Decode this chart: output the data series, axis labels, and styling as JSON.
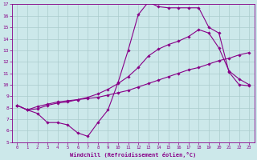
{
  "title": "",
  "xlabel": "Windchill (Refroidissement éolien,°C)",
  "ylabel": "",
  "xlim": [
    -0.5,
    23.5
  ],
  "ylim": [
    5,
    17
  ],
  "yticks": [
    5,
    6,
    7,
    8,
    9,
    10,
    11,
    12,
    13,
    14,
    15,
    16,
    17
  ],
  "xticks": [
    0,
    1,
    2,
    3,
    4,
    5,
    6,
    7,
    8,
    9,
    10,
    11,
    12,
    13,
    14,
    15,
    16,
    17,
    18,
    19,
    20,
    21,
    22,
    23
  ],
  "bg_color": "#cce8ea",
  "line_color": "#880088",
  "grid_color": "#aacccc",
  "line1_x": [
    0,
    1,
    2,
    3,
    4,
    5,
    6,
    7,
    8,
    9,
    10,
    11,
    12,
    13,
    14,
    15,
    16,
    17,
    18,
    19,
    20,
    21,
    22,
    23
  ],
  "line1_y": [
    8.2,
    7.8,
    7.5,
    6.7,
    6.7,
    6.5,
    5.8,
    5.5,
    6.7,
    7.8,
    10.2,
    13.0,
    16.1,
    17.2,
    16.8,
    16.7,
    16.7,
    16.7,
    16.7,
    15.0,
    14.5,
    11.1,
    10.0,
    9.9
  ],
  "line2_x": [
    0,
    1,
    2,
    3,
    4,
    5,
    6,
    7,
    8,
    9,
    10,
    11,
    12,
    13,
    14,
    15,
    16,
    17,
    18,
    19,
    20,
    21,
    22,
    23
  ],
  "line2_y": [
    8.2,
    7.8,
    8.1,
    8.3,
    8.5,
    8.6,
    8.7,
    8.8,
    8.9,
    9.1,
    9.3,
    9.5,
    9.8,
    10.1,
    10.4,
    10.7,
    11.0,
    11.3,
    11.5,
    11.8,
    12.1,
    12.3,
    12.6,
    12.8
  ],
  "line3_x": [
    0,
    1,
    2,
    3,
    4,
    5,
    6,
    7,
    8,
    9,
    10,
    11,
    12,
    13,
    14,
    15,
    16,
    17,
    18,
    19,
    20,
    21,
    22,
    23
  ],
  "line3_y": [
    8.2,
    7.8,
    7.9,
    8.2,
    8.4,
    8.5,
    8.7,
    8.9,
    9.2,
    9.6,
    10.1,
    10.7,
    11.5,
    12.5,
    13.1,
    13.5,
    13.8,
    14.2,
    14.8,
    14.5,
    13.2,
    11.2,
    10.5,
    10.0
  ]
}
